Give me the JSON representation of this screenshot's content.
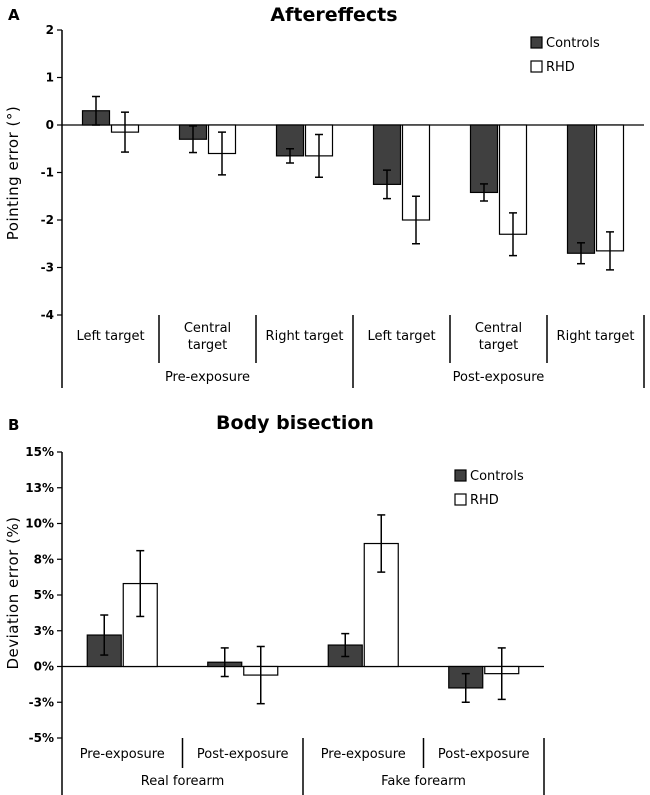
{
  "colors": {
    "controls": "#404040",
    "rhd": "#ffffff",
    "stroke": "#000000"
  },
  "chart_data": [
    {
      "panel": "A",
      "type": "bar",
      "title": "Aftereffects",
      "ylabel": "Pointing error (°)",
      "ylim": [
        -4,
        2
      ],
      "yticks": [
        "2",
        "1",
        "0",
        "-1",
        "-2",
        "-3",
        "-4"
      ],
      "categories": [
        "Left target",
        "Central target",
        "Right target",
        "Left target",
        "Central target",
        "Right target"
      ],
      "groups": [
        "Pre-exposure",
        "Post-exposure"
      ],
      "series": [
        {
          "name": "Controls",
          "values": [
            0.3,
            -0.3,
            -0.65,
            -1.25,
            -1.42,
            -2.7
          ],
          "errors": [
            0.3,
            0.28,
            0.15,
            0.3,
            0.18,
            0.22
          ]
        },
        {
          "name": "RHD",
          "values": [
            -0.15,
            -0.6,
            -0.65,
            -2.0,
            -2.3,
            -2.65
          ],
          "errors": [
            0.42,
            0.45,
            0.45,
            0.5,
            0.45,
            0.4
          ]
        }
      ]
    },
    {
      "panel": "B",
      "type": "bar",
      "title": "Body bisection",
      "ylabel": "Deviation error (%)",
      "ylim": [
        -5,
        15
      ],
      "yticks": [
        "15%",
        "13%",
        "10%",
        "8%",
        "5%",
        "3%",
        "0%",
        "-3%",
        "-5%"
      ],
      "categories": [
        "Pre-exposure",
        "Post-exposure",
        "Pre-exposure",
        "Post-exposure"
      ],
      "groups": [
        "Real forearm",
        "Fake forearm"
      ],
      "series": [
        {
          "name": "Controls",
          "values": [
            2.2,
            0.3,
            1.5,
            -1.5
          ],
          "errors": [
            1.4,
            1.0,
            0.8,
            1.0
          ]
        },
        {
          "name": "RHD",
          "values": [
            5.8,
            -0.6,
            8.6,
            -0.5
          ],
          "errors": [
            2.3,
            2.0,
            2.0,
            1.8
          ]
        }
      ]
    }
  ]
}
